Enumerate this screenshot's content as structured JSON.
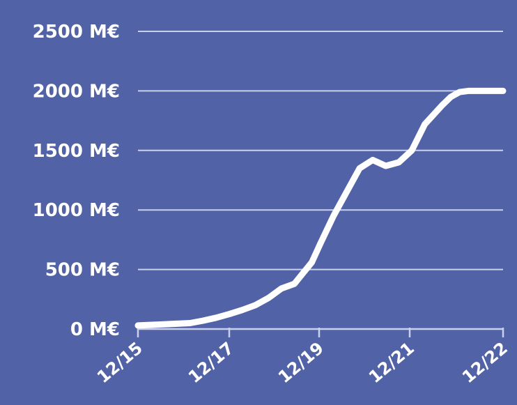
{
  "colors": {
    "background": "#5163a6",
    "gridline": "#c9d1ee",
    "line": "#ffffff",
    "text": "#ffffff"
  },
  "chart_data": {
    "type": "line",
    "title": "",
    "xlabel": "",
    "ylabel": "",
    "unit": "M€",
    "x_ticks": [
      "12/15",
      "12/17",
      "12/19",
      "12/21",
      "12/22"
    ],
    "y_ticks": [
      "0 M€",
      "500 M€",
      "1000 M€",
      "1500 M€",
      "2000 M€",
      "2500 M€"
    ],
    "ylim": [
      0,
      2500
    ],
    "xlim": [
      "2015-12",
      "2022-12"
    ],
    "grid": true,
    "legend": "none",
    "series": [
      {
        "x": [
          "2015-12",
          "2016-06",
          "2016-12",
          "2017-03",
          "2017-06",
          "2017-09",
          "2017-12",
          "2018-03",
          "2018-06",
          "2018-09",
          "2018-12",
          "2019-02",
          "2019-04",
          "2019-06",
          "2019-09",
          "2019-12",
          "2020-03",
          "2020-06",
          "2020-09",
          "2020-12",
          "2021-03",
          "2021-06",
          "2021-08",
          "2021-10",
          "2021-12",
          "2022-02",
          "2022-04",
          "2022-06",
          "2022-08",
          "2022-10",
          "2022-12"
        ],
        "y": [
          30,
          40,
          50,
          70,
          95,
          125,
          160,
          200,
          260,
          340,
          380,
          470,
          560,
          720,
          950,
          1150,
          1350,
          1420,
          1370,
          1400,
          1500,
          1720,
          1800,
          1880,
          1950,
          1990,
          2000,
          2000,
          2000,
          2000,
          2000
        ]
      }
    ]
  }
}
